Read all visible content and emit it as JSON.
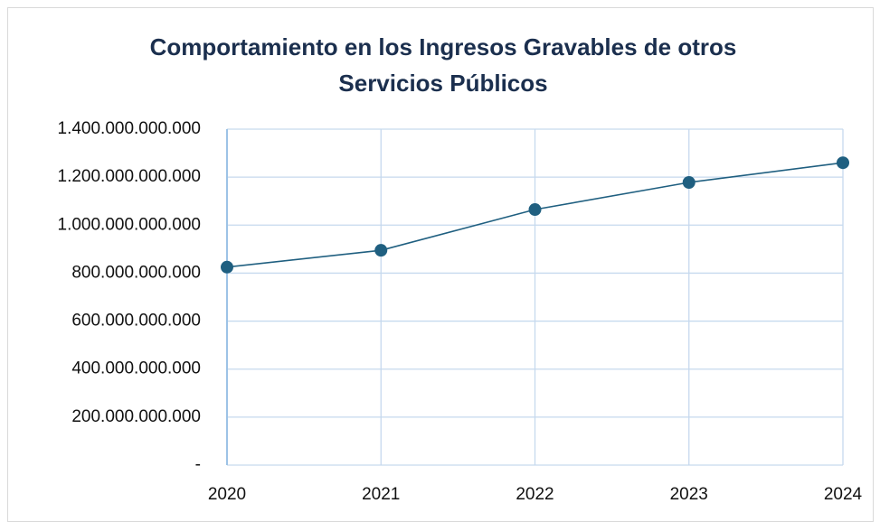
{
  "chart_data": {
    "type": "line",
    "title": "Comportamiento en los Ingresos Gravables de otros Servicios Públicos",
    "x": [
      2020,
      2021,
      2022,
      2023,
      2024
    ],
    "series": [
      {
        "name": null,
        "color": "#1f5f80",
        "values": [
          825000000000,
          895000000000,
          1065000000000,
          1178000000000,
          1260000000000
        ]
      }
    ],
    "xlim": [
      2020,
      2024
    ],
    "xticks": [
      2020,
      2021,
      2022,
      2023,
      2024
    ],
    "ylim": [
      0,
      1400000000000
    ],
    "yticks": [
      {
        "value": 0,
        "label": "-"
      },
      {
        "value": 200000000000,
        "label": "200.000.000.000"
      },
      {
        "value": 400000000000,
        "label": "400.000.000.000"
      },
      {
        "value": 600000000000,
        "label": "600.000.000.000"
      },
      {
        "value": 800000000000,
        "label": "800.000.000.000"
      },
      {
        "value": 1000000000000,
        "label": "1.000.000.000.000"
      },
      {
        "value": 1200000000000,
        "label": "1.200.000.000.000"
      },
      {
        "value": 1400000000000,
        "label": "1.400.000.000.000"
      }
    ],
    "grid": true
  }
}
